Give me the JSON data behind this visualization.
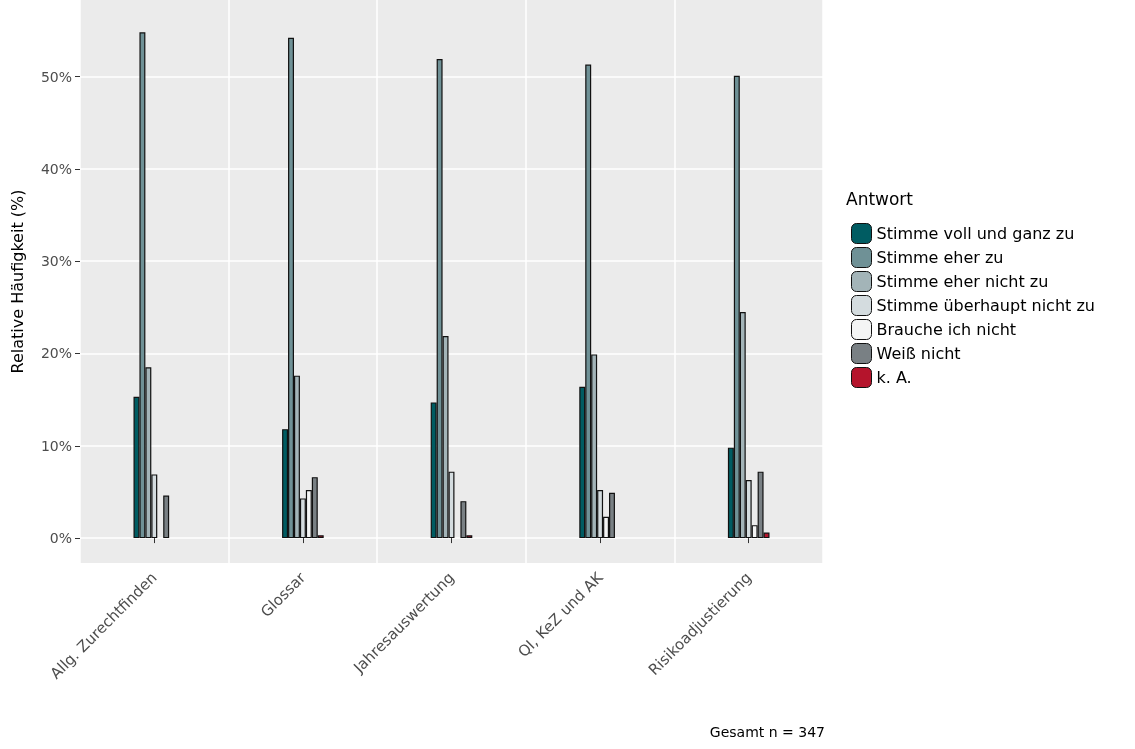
{
  "chart_data": {
    "type": "bar",
    "ylabel": "Relative Häufigkeit (%)",
    "legend_title": "Antwort",
    "legend": "right",
    "grid": true,
    "categories": [
      "Allg. Zurechtfinden",
      "Glossar",
      "Jahresauswertung",
      "QI, KeZ und AK",
      "Risikoadjustierung"
    ],
    "series": [
      {
        "name": "Stimme voll und ganz zu",
        "color": "#005c62",
        "values": [
          15.3,
          11.8,
          14.7,
          16.4,
          9.8
        ]
      },
      {
        "name": "Stimme eher zu",
        "color": "#6f9196",
        "values": [
          54.8,
          54.2,
          51.9,
          51.3,
          50.1
        ]
      },
      {
        "name": "Stimme eher nicht zu",
        "color": "#a3b4b8",
        "values": [
          18.5,
          17.6,
          21.9,
          19.9,
          24.5
        ]
      },
      {
        "name": "Stimme überhaupt nicht zu",
        "color": "#d4dcdf",
        "values": [
          6.9,
          4.3,
          7.2,
          5.2,
          6.3
        ]
      },
      {
        "name": "Brauche ich nicht",
        "color": "#f4f5f5",
        "values": [
          null,
          5.2,
          null,
          2.3,
          1.4
        ]
      },
      {
        "name": "Weiß nicht",
        "color": "#798084",
        "values": [
          4.6,
          6.6,
          4.0,
          4.9,
          7.2
        ]
      },
      {
        "name": "k. A.",
        "color": "#b5142c",
        "values": [
          null,
          0.3,
          0.3,
          null,
          0.6
        ]
      }
    ],
    "ylim": [
      -2.7,
      58.3
    ],
    "yticks": [
      {
        "value": 0,
        "label": "0%"
      },
      {
        "value": 10,
        "label": "10%"
      },
      {
        "value": 20,
        "label": "20%"
      },
      {
        "value": 30,
        "label": "30%"
      },
      {
        "value": 40,
        "label": "40%"
      },
      {
        "value": 50,
        "label": "50%"
      }
    ],
    "annotations": [
      "Gesamt n = 347"
    ]
  }
}
